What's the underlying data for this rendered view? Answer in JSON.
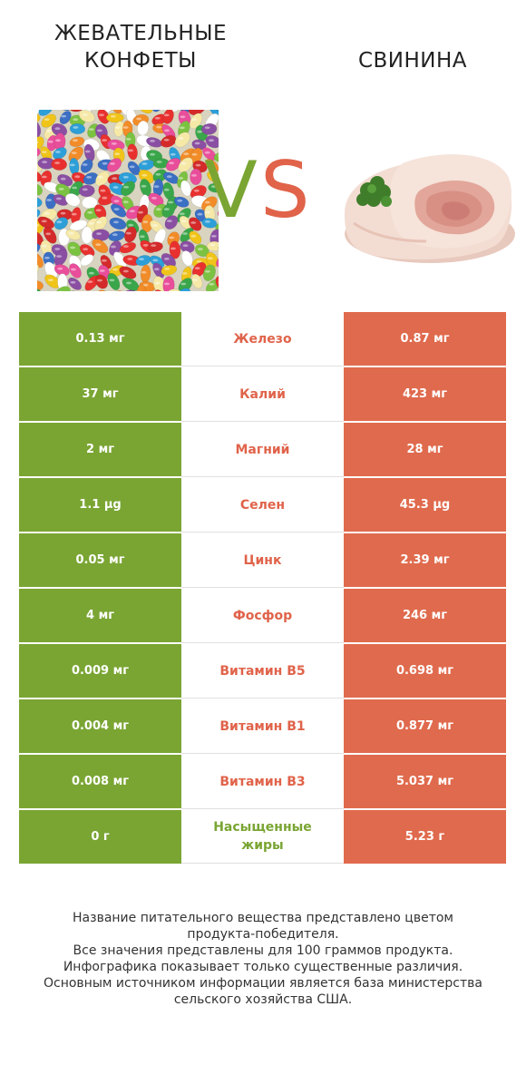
{
  "header": {
    "left_title_line1": "ЖЕВАТЕЛЬНЫЕ",
    "left_title_line2": "КОНФЕТЫ",
    "right_title": "СВИНИНА",
    "vs_v": "V",
    "vs_s": "S"
  },
  "colors": {
    "left_product": "#7aa533",
    "right_product": "#e06a4d"
  },
  "rows": [
    {
      "left": "0.13 мг",
      "nutrient": "Железо",
      "right": "0.87 мг",
      "winner": "right"
    },
    {
      "left": "37 мг",
      "nutrient": "Калий",
      "right": "423 мг",
      "winner": "right"
    },
    {
      "left": "2 мг",
      "nutrient": "Магний",
      "right": "28 мг",
      "winner": "right"
    },
    {
      "left": "1.1 µg",
      "nutrient": "Селен",
      "right": "45.3 µg",
      "winner": "right"
    },
    {
      "left": "0.05 мг",
      "nutrient": "Цинк",
      "right": "2.39 мг",
      "winner": "right"
    },
    {
      "left": "4 мг",
      "nutrient": "Фосфор",
      "right": "246 мг",
      "winner": "right"
    },
    {
      "left": "0.009 мг",
      "nutrient": "Витамин B5",
      "right": "0.698 мг",
      "winner": "right"
    },
    {
      "left": "0.004 мг",
      "nutrient": "Витамин B1",
      "right": "0.877 мг",
      "winner": "right"
    },
    {
      "left": "0.008 мг",
      "nutrient": "Витамин B3",
      "right": "5.037 мг",
      "winner": "right"
    },
    {
      "left": "0 г",
      "nutrient": "Насыщенные жиры",
      "right": "5.23 г",
      "winner": "left"
    }
  ],
  "footer": {
    "line1": "Название питательного вещества представлено цветом",
    "line2": "продукта-победителя.",
    "line3": "Все значения представлены для 100 граммов продукта.",
    "line4": "Инфографика показывает только существенные различия.",
    "line5": "Основным источником информации является база министерства",
    "line6": "сельского хозяйства США."
  }
}
